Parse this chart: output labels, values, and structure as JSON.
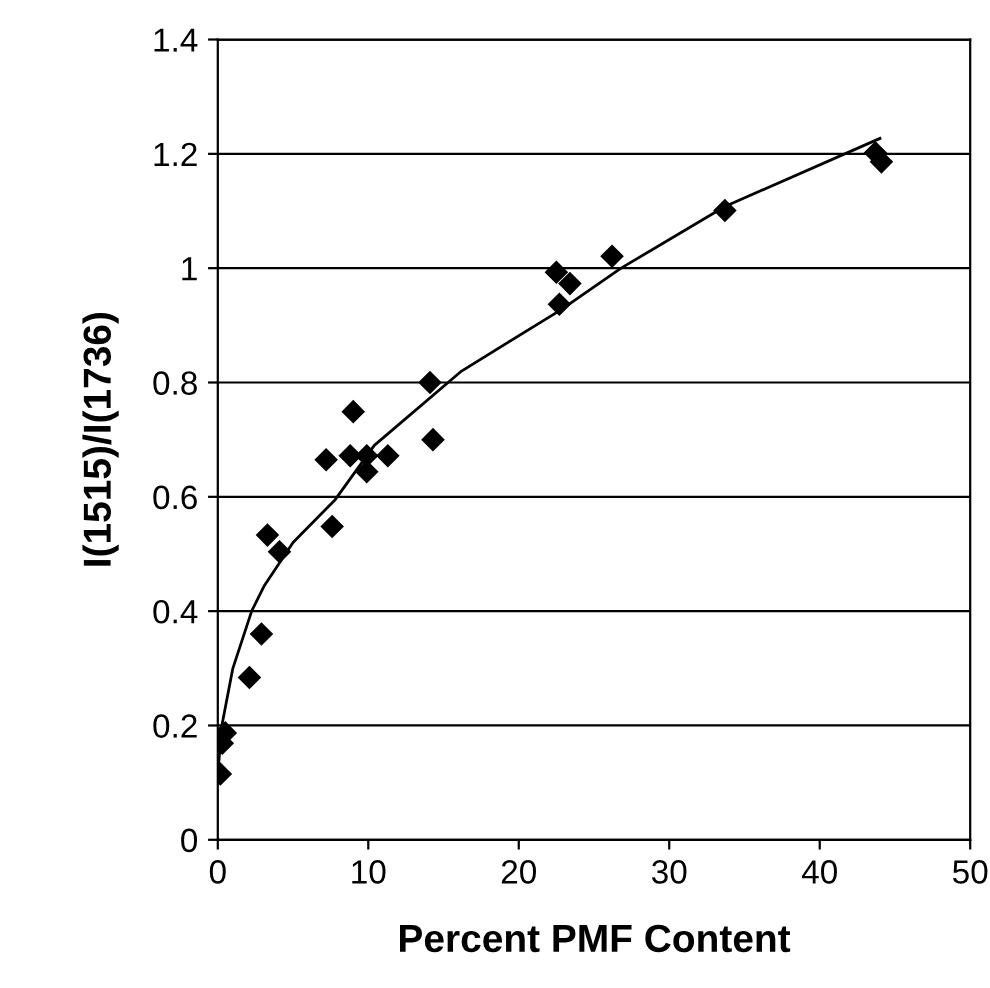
{
  "chart_data": {
    "type": "scatter",
    "xlabel": "Percent PMF Content",
    "ylabel": "I(1515)/I(1736)",
    "xlim": [
      0,
      50
    ],
    "ylim": [
      0,
      1.4
    ],
    "xticks": [
      0,
      10,
      20,
      30,
      40,
      50
    ],
    "yticks": [
      0,
      0.2,
      0.4,
      0.6,
      0.8,
      1,
      1.2,
      1.4
    ],
    "grid": "y",
    "marker": "diamond",
    "series": [
      {
        "color": "#000000",
        "x": [
          0.17,
          0.3,
          0.5,
          2.1,
          2.9,
          3.3,
          4.1,
          7.2,
          7.6,
          8.8,
          9.0,
          9.9,
          9.9,
          11.3,
          14.1,
          14.3,
          22.5,
          23.4,
          22.7,
          26.2,
          33.7,
          43.7,
          44.1
        ],
        "values": [
          0.115,
          0.169,
          0.187,
          0.284,
          0.36,
          0.533,
          0.504,
          0.665,
          0.548,
          0.672,
          0.749,
          0.672,
          0.644,
          0.672,
          0.8,
          0.7,
          0.993,
          0.973,
          0.937,
          1.021,
          1.101,
          1.202,
          1.186
        ]
      },
      {
        "type": "line",
        "color": "#000000",
        "marker": "none",
        "x": [
          0.05,
          0.27,
          1.0,
          2.25,
          3.1,
          5.0,
          7.8,
          10.4,
          16.2,
          22.8,
          26.8,
          33.7,
          44.0
        ],
        "values": [
          0.13,
          0.2,
          0.3,
          0.4,
          0.445,
          0.52,
          0.595,
          0.69,
          0.82,
          0.927,
          1.0,
          1.108,
          1.227
        ]
      }
    ]
  }
}
